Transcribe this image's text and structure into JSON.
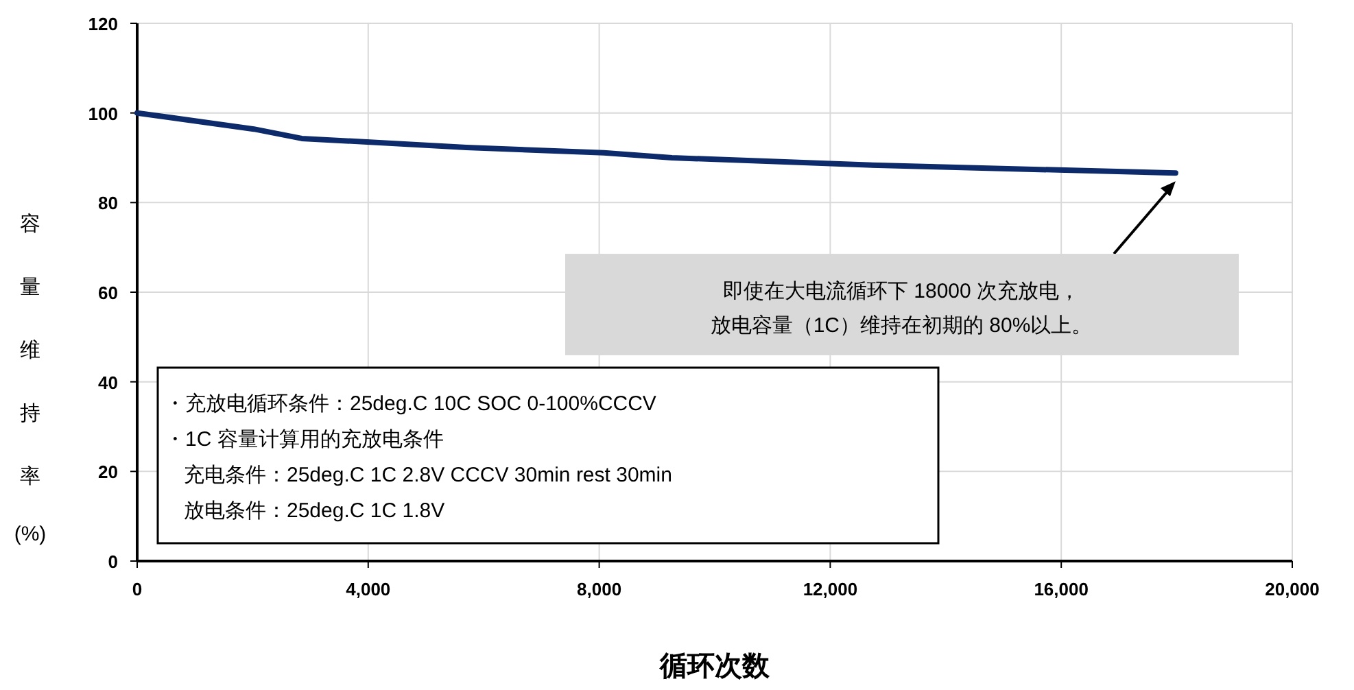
{
  "chart_data": {
    "type": "line",
    "xlabel": "循环次数",
    "ylabel": "容量维持率(%)",
    "x": [
      0,
      2020,
      2850,
      5700,
      8080,
      9260,
      12830,
      17980
    ],
    "series": [
      {
        "color": "#0d2a6b",
        "values": [
          100,
          96.4,
          94.3,
          92.3,
          91.1,
          90.0,
          88.3,
          86.6
        ]
      }
    ],
    "xlim": [
      0,
      20000
    ],
    "xticks": [
      {
        "value": 0,
        "label": "0"
      },
      {
        "value": 4000,
        "label": "4,000"
      },
      {
        "value": 8000,
        "label": "8,000"
      },
      {
        "value": 12000,
        "label": "12,000"
      },
      {
        "value": 16000,
        "label": "16,000"
      },
      {
        "value": 20000,
        "label": "20,000"
      }
    ],
    "ylim": [
      0,
      120
    ],
    "yticks": [
      0,
      20,
      40,
      60,
      80,
      100,
      120
    ],
    "grid": true,
    "marker": "none",
    "line_style": "solid",
    "annotations": [
      "即使在大电流循环下 18000 次充放电，放电容量（1C）维持在初期的 80%以上。",
      "・充放电循环条件：25deg.C 10C SOC 0-100%CCCV",
      "・1C 容量计算用的充放电条件",
      "充电条件：25deg.C 1C 2.8V CCCV 30min rest 30min",
      "放电条件：25deg.C 1C 1.8V"
    ]
  }
}
